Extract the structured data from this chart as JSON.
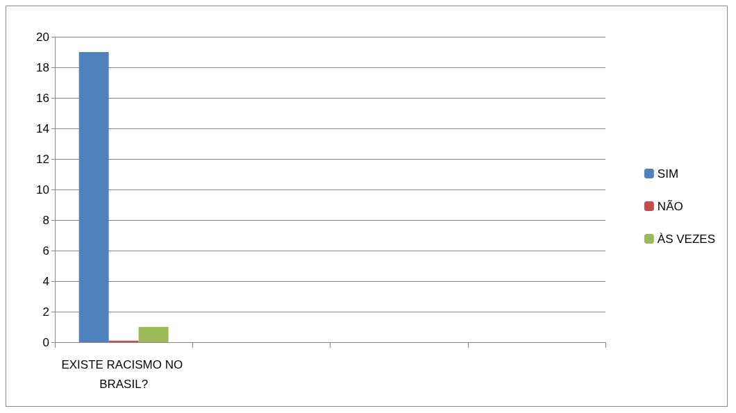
{
  "chart_data": {
    "type": "bar",
    "categories": [
      "EXISTE RACISMO NO BRASIL?",
      null,
      null,
      null
    ],
    "series": [
      {
        "name": "SIM",
        "color": "#4f81bd",
        "values": [
          19,
          null,
          null,
          null
        ]
      },
      {
        "name": "NÃO",
        "color": "#c0504d",
        "values": [
          0.1,
          null,
          null,
          null
        ]
      },
      {
        "name": "ÀS VEZES",
        "color": "#9bbb59",
        "values": [
          1,
          null,
          null,
          null
        ]
      }
    ],
    "ylim": [
      0,
      20
    ],
    "yticks": [
      0,
      2,
      4,
      6,
      8,
      10,
      12,
      14,
      16,
      18,
      20
    ],
    "grid": "y",
    "legend": "right"
  }
}
